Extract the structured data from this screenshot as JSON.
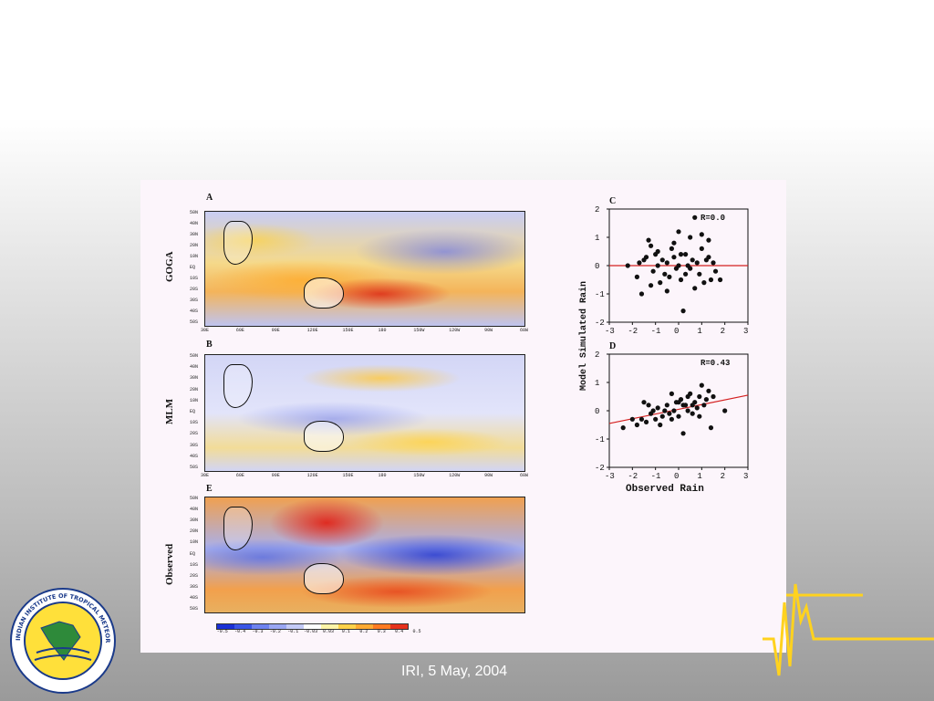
{
  "slide": {
    "caption": "IRI, 5 May, 2004"
  },
  "logo": {
    "text": "INDIAN INSTITUTE OF TROPICAL METEOROLOGY PUNE"
  },
  "maps": {
    "panels": [
      {
        "letter": "A",
        "row_label": "GOGA"
      },
      {
        "letter": "B",
        "row_label": "MLM"
      },
      {
        "letter": "E",
        "row_label": "Observed"
      }
    ],
    "lat_ticks": [
      "50N",
      "40N",
      "30N",
      "20N",
      "10N",
      "EQ",
      "10S",
      "20S",
      "30S",
      "40S",
      "50S"
    ],
    "lon_ticks": [
      "30E",
      "60E",
      "90E",
      "120E",
      "150E",
      "180",
      "150W",
      "120W",
      "90W",
      "60W"
    ],
    "colorbar_labels": [
      "-0.5",
      "-0.4",
      "-0.3",
      "-0.2",
      "-0.1",
      "-0.03",
      "0.03",
      "0.1",
      "0.2",
      "0.3",
      "0.4",
      "0.5"
    ],
    "colorbar_colors": [
      "#1a2fd6",
      "#3b55e6",
      "#6e82f0",
      "#9aa6f3",
      "#c4caf7",
      "#ffffff",
      "#fff4a8",
      "#ffd24a",
      "#ffaa33",
      "#ff7a22",
      "#e6321c"
    ]
  },
  "chart_data": [
    {
      "type": "scatter",
      "title": "C",
      "annotation": "R=0.0",
      "xlim": [
        -3,
        3
      ],
      "ylim": [
        -2,
        2
      ],
      "x_ticks": [
        "-3",
        "-2",
        "-1",
        "0",
        "1",
        "2",
        "3"
      ],
      "y_ticks": [
        "2",
        "1",
        "0",
        "-1",
        "-2"
      ],
      "fit_line": {
        "color": "#d42020",
        "points": [
          [
            -3,
            0.0
          ],
          [
            3,
            0.0
          ]
        ]
      },
      "points": [
        [
          -2.2,
          0.0
        ],
        [
          -1.8,
          -0.4
        ],
        [
          -1.7,
          0.1
        ],
        [
          -1.5,
          0.2
        ],
        [
          -1.4,
          0.3
        ],
        [
          -1.3,
          0.9
        ],
        [
          -1.2,
          0.7
        ],
        [
          -1.1,
          -0.2
        ],
        [
          -1.0,
          0.4
        ],
        [
          -0.9,
          0.0
        ],
        [
          -0.8,
          -0.6
        ],
        [
          -0.7,
          0.2
        ],
        [
          -0.6,
          -0.3
        ],
        [
          -0.5,
          0.1
        ],
        [
          -0.4,
          -0.4
        ],
        [
          -0.3,
          0.6
        ],
        [
          -0.2,
          0.3
        ],
        [
          -0.1,
          -0.1
        ],
        [
          0.0,
          1.2
        ],
        [
          0.1,
          -0.5
        ],
        [
          0.2,
          -1.6
        ],
        [
          0.3,
          0.4
        ],
        [
          0.4,
          0.0
        ],
        [
          0.5,
          1.0
        ],
        [
          0.6,
          0.2
        ],
        [
          0.7,
          -0.8
        ],
        [
          0.8,
          0.1
        ],
        [
          0.9,
          -0.3
        ],
        [
          1.0,
          0.6
        ],
        [
          1.1,
          -0.6
        ],
        [
          1.2,
          0.2
        ],
        [
          1.3,
          0.9
        ],
        [
          1.4,
          -0.5
        ],
        [
          1.5,
          0.1
        ],
        [
          1.6,
          -0.2
        ],
        [
          1.8,
          -0.5
        ],
        [
          0.7,
          1.7
        ],
        [
          -1.6,
          -1.0
        ],
        [
          0.0,
          0.0
        ],
        [
          -0.5,
          -0.9
        ],
        [
          0.3,
          -0.3
        ],
        [
          1.0,
          1.1
        ],
        [
          -1.2,
          -0.7
        ],
        [
          0.5,
          -0.1
        ],
        [
          -0.2,
          0.8
        ],
        [
          1.3,
          0.3
        ],
        [
          -0.9,
          0.5
        ],
        [
          0.1,
          0.4
        ]
      ]
    },
    {
      "type": "scatter",
      "title": "D",
      "annotation": "R=0.43",
      "xlabel": "Observed Rain",
      "ylabel": "Model Simulated Rain",
      "xlim": [
        -3,
        3
      ],
      "ylim": [
        -2,
        2
      ],
      "x_ticks": [
        "-3",
        "-2",
        "-1",
        "0",
        "1",
        "2",
        "3"
      ],
      "y_ticks": [
        "2",
        "1",
        "0",
        "-1",
        "-2"
      ],
      "fit_line": {
        "color": "#d42020",
        "points": [
          [
            -3,
            -0.45
          ],
          [
            3,
            0.55
          ]
        ]
      },
      "points": [
        [
          -2.4,
          -0.6
        ],
        [
          -2.0,
          -0.3
        ],
        [
          -1.8,
          -0.5
        ],
        [
          -1.6,
          -0.3
        ],
        [
          -1.5,
          0.3
        ],
        [
          -1.3,
          0.2
        ],
        [
          -1.2,
          -0.1
        ],
        [
          -1.1,
          0.0
        ],
        [
          -1.0,
          -0.3
        ],
        [
          -0.9,
          0.1
        ],
        [
          -0.8,
          -0.5
        ],
        [
          -0.7,
          -0.2
        ],
        [
          -0.6,
          0.0
        ],
        [
          -0.5,
          0.2
        ],
        [
          -0.4,
          -0.1
        ],
        [
          -0.3,
          0.6
        ],
        [
          -0.2,
          0.0
        ],
        [
          -0.1,
          0.3
        ],
        [
          0.0,
          -0.2
        ],
        [
          0.1,
          0.4
        ],
        [
          0.2,
          -0.8
        ],
        [
          0.3,
          0.2
        ],
        [
          0.4,
          0.0
        ],
        [
          0.5,
          0.6
        ],
        [
          0.6,
          -0.1
        ],
        [
          0.7,
          0.3
        ],
        [
          0.8,
          0.1
        ],
        [
          0.9,
          0.5
        ],
        [
          1.0,
          0.9
        ],
        [
          1.1,
          0.2
        ],
        [
          1.2,
          0.4
        ],
        [
          1.3,
          0.7
        ],
        [
          1.4,
          -0.6
        ],
        [
          1.5,
          0.5
        ],
        [
          2.0,
          0.0
        ],
        [
          0.0,
          0.3
        ],
        [
          0.2,
          0.2
        ],
        [
          -0.3,
          -0.3
        ],
        [
          0.6,
          0.2
        ],
        [
          0.9,
          -0.2
        ],
        [
          0.4,
          0.5
        ],
        [
          -1.4,
          -0.4
        ]
      ]
    }
  ]
}
